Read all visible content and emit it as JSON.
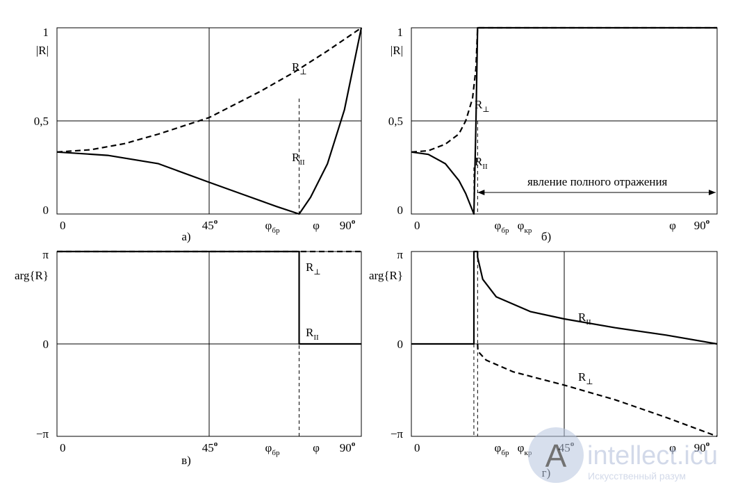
{
  "chart_data": [
    {
      "panel": "а)",
      "type": "line",
      "ylabel": "|R|",
      "ylim": [
        0,
        1
      ],
      "yticks": [
        "1",
        "0,5",
        "0"
      ],
      "xticks": [
        {
          "main": "0"
        },
        {
          "main": "45",
          "sup": "o"
        },
        {
          "main": "φ",
          "sub": "бр"
        },
        {
          "main": "φ"
        },
        {
          "main": "90",
          "sup": "o"
        }
      ],
      "vline_label": "45°",
      "brewster_deg": 71.6,
      "series": [
        {
          "name": "R",
          "sub": "⊥",
          "style": "dashed",
          "points": [
            [
              0,
              0.333
            ],
            [
              10,
              0.345
            ],
            [
              20,
              0.378
            ],
            [
              30,
              0.429
            ],
            [
              45,
              0.518
            ],
            [
              60,
              0.657
            ],
            [
              70,
              0.76
            ],
            [
              80,
              0.876
            ],
            [
              90,
              1.0
            ]
          ]
        },
        {
          "name": "R",
          "sub": "II",
          "style": "solid",
          "points": [
            [
              0,
              0.333
            ],
            [
              15,
              0.315
            ],
            [
              30,
              0.27
            ],
            [
              45,
              0.17
            ],
            [
              55,
              0.105
            ],
            [
              65,
              0.04
            ],
            [
              71.6,
              0.0
            ],
            [
              75,
              0.09
            ],
            [
              80,
              0.27
            ],
            [
              85,
              0.56
            ],
            [
              90,
              1.0
            ]
          ]
        }
      ]
    },
    {
      "panel": "б)",
      "type": "line",
      "ylabel": "|R|",
      "ylim": [
        0,
        1
      ],
      "yticks": [
        "1",
        "0,5",
        "0"
      ],
      "xticks": [
        {
          "main": "0"
        },
        {
          "main": "φ",
          "sub": "бр"
        },
        {
          "main": "φ",
          "sub": "кр"
        },
        {
          "main": "φ"
        },
        {
          "main": "90",
          "sup": "o"
        }
      ],
      "annotation": "явление полного отражения",
      "brewster_deg": 18.4,
      "critical_deg": 19.5,
      "series": [
        {
          "name": "R",
          "sub": "⊥",
          "style": "dashed",
          "points": [
            [
              0,
              0.333
            ],
            [
              5,
              0.34
            ],
            [
              10,
              0.375
            ],
            [
              14,
              0.43
            ],
            [
              16,
              0.5
            ],
            [
              18,
              0.62
            ],
            [
              19,
              0.78
            ],
            [
              19.5,
              1.0
            ],
            [
              90,
              1.0
            ]
          ]
        },
        {
          "name": "R",
          "sub": "II",
          "style": "solid",
          "points": [
            [
              0,
              0.333
            ],
            [
              5,
              0.32
            ],
            [
              10,
              0.27
            ],
            [
              14,
              0.18
            ],
            [
              16,
              0.11
            ],
            [
              18.4,
              0.0
            ],
            [
              19,
              0.48
            ],
            [
              19.5,
              1.0
            ],
            [
              90,
              1.0
            ]
          ]
        }
      ]
    },
    {
      "panel": "в)",
      "type": "line",
      "ylabel": "arg{R}",
      "ylim": [
        "−π",
        "π"
      ],
      "yticks": [
        "π",
        "0",
        "−π"
      ],
      "xticks": [
        {
          "main": "0"
        },
        {
          "main": "45",
          "sup": "o"
        },
        {
          "main": "φ",
          "sub": "бр"
        },
        {
          "main": "φ"
        },
        {
          "main": "90",
          "sup": "o"
        }
      ],
      "brewster_deg": 71.6,
      "series": [
        {
          "name": "R",
          "sub": "⊥",
          "style": "dashed",
          "points": [
            [
              0,
              3.1416
            ],
            [
              90,
              3.1416
            ]
          ]
        },
        {
          "name": "R",
          "sub": "II",
          "style": "solid",
          "points": [
            [
              0,
              3.1416
            ],
            [
              71.6,
              3.1416
            ],
            [
              71.6,
              0
            ],
            [
              90,
              0
            ]
          ]
        }
      ]
    },
    {
      "panel": "г)",
      "type": "line",
      "ylabel": "arg{R}",
      "ylim": [
        "−π",
        "π"
      ],
      "yticks": [
        "π",
        "0",
        "−π"
      ],
      "xticks": [
        {
          "main": "0"
        },
        {
          "main": "φ",
          "sub": "бр"
        },
        {
          "main": "φ",
          "sub": "кр"
        },
        {
          "main": "45",
          "sup": "o"
        },
        {
          "main": "φ"
        },
        {
          "main": "90",
          "sup": "o"
        }
      ],
      "brewster_deg": 18.4,
      "critical_deg": 19.5,
      "series": [
        {
          "name": "R",
          "sub": "II",
          "style": "solid",
          "points": [
            [
              0,
              0
            ],
            [
              18.4,
              0
            ],
            [
              18.4,
              3.1416
            ],
            [
              19.5,
              3.1416
            ],
            [
              19.5,
              2.95
            ],
            [
              21,
              2.2
            ],
            [
              25,
              1.6
            ],
            [
              35,
              1.1
            ],
            [
              45,
              0.85
            ],
            [
              60,
              0.55
            ],
            [
              75,
              0.3
            ],
            [
              90,
              0.0
            ]
          ]
        },
        {
          "name": "R",
          "sub": "⊥",
          "style": "dashed",
          "points": [
            [
              19.5,
              0
            ],
            [
              19.6,
              -0.25
            ],
            [
              22,
              -0.55
            ],
            [
              30,
              -0.95
            ],
            [
              45,
              -1.4
            ],
            [
              60,
              -1.9
            ],
            [
              75,
              -2.5
            ],
            [
              90,
              -3.1416
            ]
          ]
        }
      ]
    }
  ],
  "watermark": {
    "title": "intellect.icu",
    "subtitle": "Искусственный разум",
    "logo_letter": "A"
  }
}
